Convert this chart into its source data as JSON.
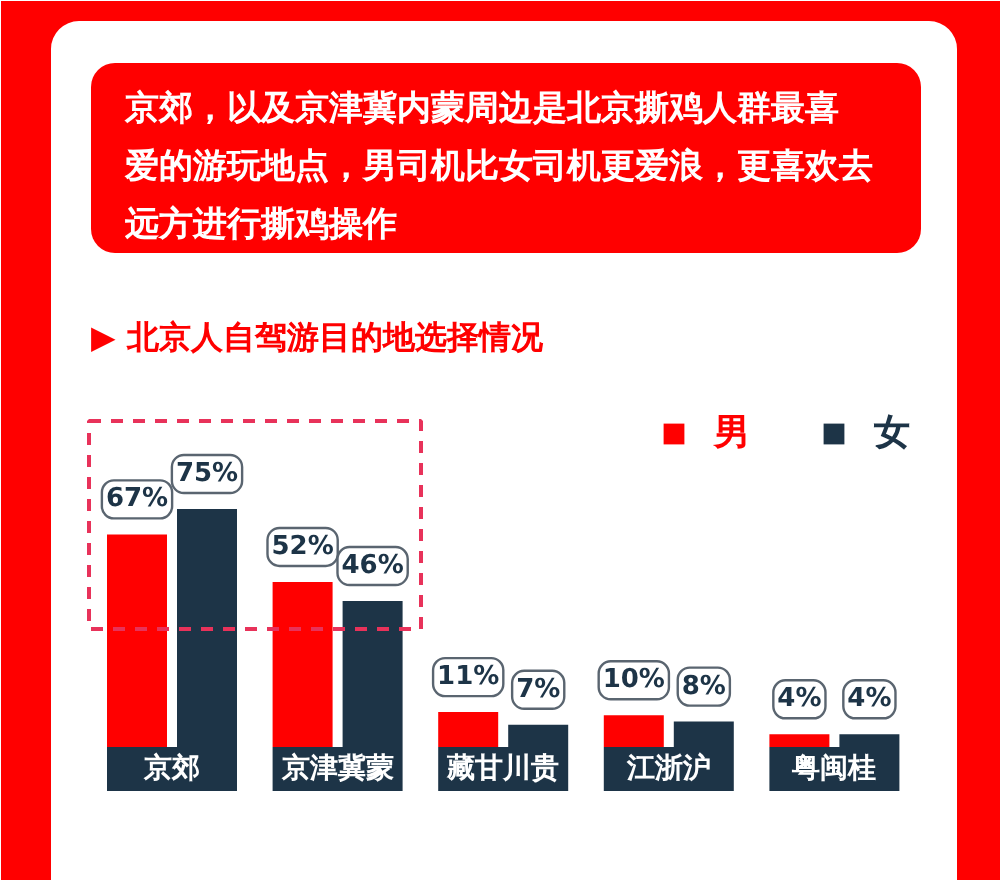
{
  "chart_data": {
    "type": "bar",
    "title": "京郊，以及京津冀内蒙周边是北京撕鸡人群最喜爱的游玩地点，男司机比女司机更爱浪，更喜欢去远方进行撕鸡操作",
    "subtitle": "▶ 北京人自驾游目的地选择情况",
    "categories": [
      "京郊",
      "京津冀蒙",
      "藏甘川贵",
      "江浙沪",
      "粤闽桂"
    ],
    "series": [
      {
        "name": "男",
        "color": "#ff0000",
        "values": [
          67,
          52,
          11,
          10,
          4
        ],
        "value_labels": [
          "67%",
          "52%",
          "11%",
          "10%",
          "4%"
        ]
      },
      {
        "name": "女",
        "color": "#1d3447",
        "values": [
          75,
          46,
          7,
          8,
          4
        ],
        "value_labels": [
          "75%",
          "46%",
          "7%",
          "8%",
          "4%"
        ]
      }
    ],
    "legend": "top right",
    "tick_labels": "x"
  }
}
